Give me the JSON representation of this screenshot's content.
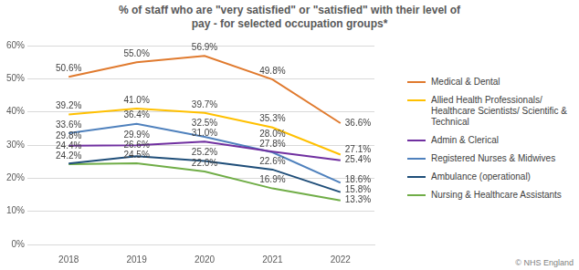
{
  "chart_data": {
    "type": "line",
    "title": "% of staff who are \"very satisfied\" or \"satisfied\" with their level of pay - for selected occupation groups*",
    "source": "© NHS England",
    "categories": [
      "2018",
      "2019",
      "2020",
      "2021",
      "2022"
    ],
    "series": [
      {
        "name": "Medical & Dental",
        "color": "#E07A2E",
        "values": [
          50.6,
          55.0,
          56.9,
          49.8,
          36.6
        ],
        "value_labels": [
          "50.6%",
          "55.0%",
          "56.9%",
          "49.8%",
          "36.6%"
        ]
      },
      {
        "name": "Allied Health Professionals/ Healthcare Scientists/ Scientific & Technical",
        "color": "#FFC000",
        "values": [
          39.2,
          41.0,
          39.7,
          35.3,
          27.1
        ],
        "value_labels": [
          "39.2%",
          "41.0%",
          "39.7%",
          "35.3%",
          "27.1%"
        ]
      },
      {
        "name": "Admin & Clerical",
        "color": "#7030A0",
        "values": [
          29.8,
          29.9,
          31.0,
          28.0,
          25.4
        ],
        "value_labels": [
          "29.8%",
          "29.9%",
          "31.0%",
          "28.0%",
          "25.4%"
        ]
      },
      {
        "name": "Registered Nurses & Midwives",
        "color": "#4F81BD",
        "values": [
          33.6,
          36.4,
          32.5,
          27.8,
          18.6
        ],
        "value_labels": [
          "33.6%",
          "36.4%",
          "32.5%",
          "27.8%",
          "18.6%"
        ]
      },
      {
        "name": "Ambulance (operational)",
        "color": "#1F4E79",
        "values": [
          24.4,
          26.6,
          25.2,
          22.6,
          15.8
        ],
        "value_labels": [
          "24.4%",
          "26.6%",
          "25.2%",
          "22.6%",
          "15.8%"
        ]
      },
      {
        "name": "Nursing & Healthcare Assistants",
        "color": "#70AD47",
        "values": [
          24.2,
          24.5,
          22.0,
          16.9,
          13.3
        ],
        "value_labels": [
          "24.2%",
          "24.5%",
          "22.0%",
          "16.9%",
          "13.3%"
        ]
      }
    ],
    "ylim": [
      0,
      60
    ],
    "yticks": [
      {
        "value": 0,
        "label": "0%"
      },
      {
        "value": 10,
        "label": "10%"
      },
      {
        "value": 20,
        "label": "20%"
      },
      {
        "value": 30,
        "label": "30%"
      },
      {
        "value": 40,
        "label": "40%"
      },
      {
        "value": 50,
        "label": "50%"
      },
      {
        "value": 60,
        "label": "60%"
      }
    ],
    "grid": true,
    "legend": "right",
    "data_labels": true
  }
}
